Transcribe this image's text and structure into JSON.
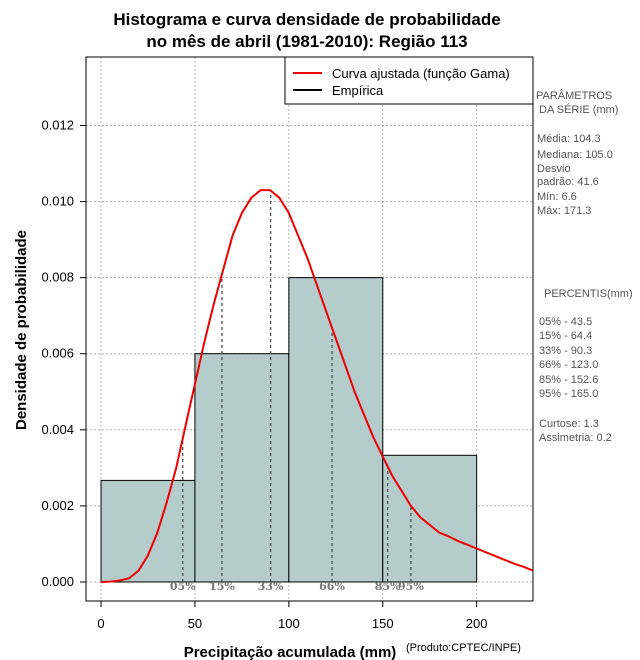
{
  "chart_data": {
    "type": "histogram",
    "title_line1": "Histograma e curva densidade de probabilidade",
    "title_line2": "no mês de abril (1981-2010): Região 113",
    "xlabel": "Precipitação acumulada (mm)",
    "ylabel": "Densidade de probabilidade",
    "credit": "(Produto:CPTEC/INPE)",
    "xlim": [
      -8,
      230
    ],
    "ylim": [
      -0.0005,
      0.0138
    ],
    "x_ticks": [
      0,
      50,
      100,
      150,
      200
    ],
    "y_ticks": [
      0.0,
      0.002,
      0.004,
      0.006,
      0.008,
      0.01,
      0.012
    ],
    "y_tick_labels": [
      "0.000",
      "0.002",
      "0.004",
      "0.006",
      "0.008",
      "0.010",
      "0.012"
    ],
    "bins": [
      {
        "from": 0,
        "to": 50,
        "density": 0.00267
      },
      {
        "from": 50,
        "to": 100,
        "density": 0.006
      },
      {
        "from": 100,
        "to": 150,
        "density": 0.008
      },
      {
        "from": 150,
        "to": 200,
        "density": 0.00333
      }
    ],
    "fitted_curve": {
      "name": "Curva ajustada (função Gama)",
      "color": "#ee0000",
      "points": [
        [
          0,
          0
        ],
        [
          5,
          1e-05
        ],
        [
          10,
          4e-05
        ],
        [
          15,
          0.0001
        ],
        [
          20,
          0.0003
        ],
        [
          25,
          0.0007
        ],
        [
          30,
          0.0013
        ],
        [
          35,
          0.0021
        ],
        [
          40,
          0.003
        ],
        [
          45,
          0.0041
        ],
        [
          50,
          0.0052
        ],
        [
          55,
          0.0063
        ],
        [
          60,
          0.0073
        ],
        [
          65,
          0.0082
        ],
        [
          70,
          0.0091
        ],
        [
          75,
          0.0097
        ],
        [
          80,
          0.0101
        ],
        [
          85,
          0.0103
        ],
        [
          90,
          0.0103
        ],
        [
          95,
          0.0101
        ],
        [
          100,
          0.0097
        ],
        [
          105,
          0.0091
        ],
        [
          110,
          0.0085
        ],
        [
          115,
          0.0078
        ],
        [
          120,
          0.0071
        ],
        [
          125,
          0.0064
        ],
        [
          130,
          0.0057
        ],
        [
          135,
          0.005
        ],
        [
          140,
          0.0044
        ],
        [
          145,
          0.0038
        ],
        [
          150,
          0.0033
        ],
        [
          155,
          0.0028
        ],
        [
          160,
          0.0024
        ],
        [
          165,
          0.002
        ],
        [
          170,
          0.0017
        ],
        [
          175,
          0.0015
        ],
        [
          180,
          0.0013
        ],
        [
          185,
          0.0012
        ],
        [
          190,
          0.00108
        ],
        [
          195,
          0.00098
        ],
        [
          200,
          0.00088
        ],
        [
          205,
          0.00078
        ],
        [
          210,
          0.00068
        ],
        [
          215,
          0.00058
        ],
        [
          220,
          0.00048
        ],
        [
          225,
          0.0004
        ],
        [
          230,
          0.0003
        ]
      ]
    },
    "empirical": {
      "name": "Empírica",
      "color": "#000000"
    },
    "percentile_markers": [
      {
        "label": "05%",
        "x": 43.5
      },
      {
        "label": "15%",
        "x": 64.4
      },
      {
        "label": "33%",
        "x": 90.3
      },
      {
        "label": "66%",
        "x": 123.0
      },
      {
        "label": "85%",
        "x": 152.6
      },
      {
        "label": "95%",
        "x": 165.0
      }
    ],
    "bar_color": "#b4cccc"
  },
  "side_panel": {
    "parametros_title_1": "PARÂMETROS",
    "parametros_title_2": "DA SÉRIE (mm)",
    "media": "Média:  104.3",
    "mediana": "Mediana:  105.0",
    "desvio_1": "Desvio",
    "desvio_2": "padrão:  41.6",
    "min": "Mín:  6.6",
    "max": "Máx:  171.3",
    "percentis_title": "PERCENTIS(mm)",
    "p05": "05% -   43.5",
    "p15": "15% -   64.4",
    "p33": "33% -   90.3",
    "p66": "66% -   123.0",
    "p85": "85% -   152.6",
    "p95": "95% -   165.0",
    "curtose": "Curtose:  1.3",
    "assimetria": "Assimetria:  0.2"
  }
}
